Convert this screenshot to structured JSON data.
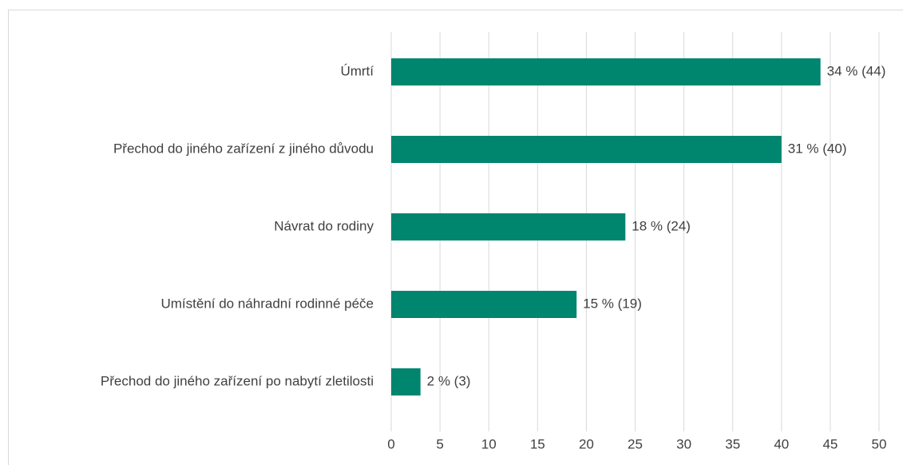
{
  "chart_data": {
    "type": "bar",
    "orientation": "horizontal",
    "categories": [
      "Úmrtí",
      "Přechod do jiného zařízení z jiného důvodu",
      "Návrat do rodiny",
      "Umístění do náhradní rodinné péče",
      "Přechod do jiného zařízení po nabytí zletilosti"
    ],
    "values": [
      44,
      40,
      24,
      19,
      3
    ],
    "value_labels": [
      "34 % (44)",
      "31 % (40)",
      "18 % (24)",
      "15 % (19)",
      "2 % (3)"
    ],
    "color": "#00856f",
    "xlim": [
      0,
      50
    ],
    "xticks": [
      0,
      5,
      10,
      15,
      20,
      25,
      30,
      35,
      40,
      45,
      50
    ],
    "grid": true
  }
}
